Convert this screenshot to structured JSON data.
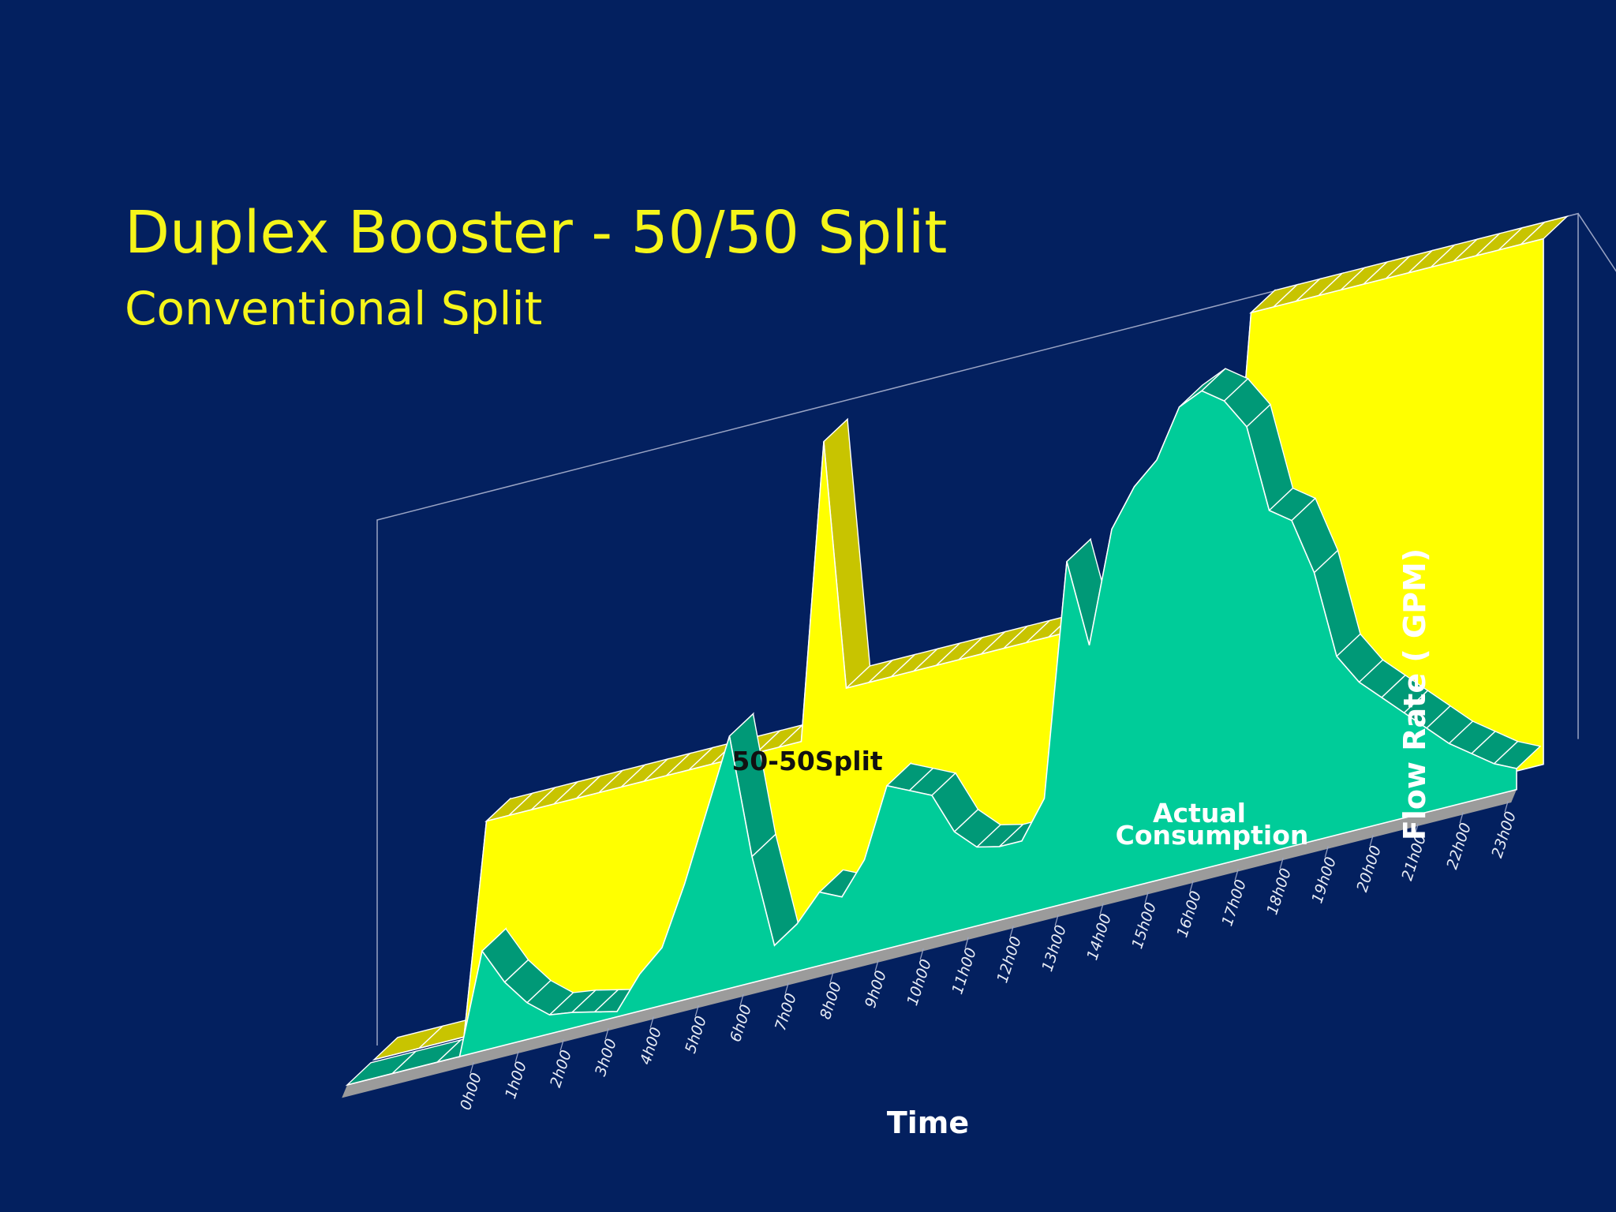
{
  "title": "Duplex Booster - 50/50 Split",
  "subtitle": "Conventional Split",
  "chart_data": {
    "type": "area",
    "projection": "3d",
    "categories": [
      "0h00",
      "1h00",
      "2h00",
      "3h00",
      "4h00",
      "5h00",
      "6h00",
      "7h00",
      "8h00",
      "9h00",
      "10h00",
      "11h00",
      "12h00",
      "13h00",
      "14h00",
      "15h00",
      "16h00",
      "17h00",
      "18h00",
      "19h00",
      "20h00",
      "21h00",
      "22h00",
      "23h00"
    ],
    "x": [
      -3,
      -2,
      -1,
      -0.5,
      0,
      0.5,
      1,
      1.5,
      2,
      2.5,
      3,
      3.5,
      4,
      4.5,
      5,
      5.5,
      6,
      6.5,
      7,
      7.5,
      8,
      8.5,
      9,
      9.5,
      10,
      10.5,
      11,
      11.5,
      12,
      12.5,
      13,
      13.5,
      14,
      14.5,
      15,
      15.5,
      16,
      16.5,
      17,
      17.5,
      18,
      18.5,
      19,
      19.5,
      20,
      20.5,
      21,
      21.5,
      22,
      22.5,
      23
    ],
    "series": [
      {
        "name": "50-50Split",
        "color": "#ffff00",
        "side_color": "#c8c400",
        "values": [
          0,
          0,
          0,
          200,
          200,
          200,
          200,
          200,
          200,
          200,
          200,
          200,
          200,
          200,
          200,
          200,
          200,
          200,
          480,
          240,
          240,
          240,
          240,
          240,
          240,
          240,
          240,
          240,
          240,
          240,
          240,
          240,
          240,
          240,
          240,
          240,
          240,
          500,
          500,
          500,
          500,
          500,
          500,
          500,
          500,
          500,
          500,
          500,
          500,
          500,
          500
        ]
      },
      {
        "name": "Actual Consumption",
        "color": "#00cc99",
        "side_color": "#009977",
        "values": [
          0,
          0,
          0,
          0,
          95,
          60,
          35,
          18,
          15,
          10,
          5,
          35,
          55,
          110,
          175,
          240,
          120,
          30,
          45,
          70,
          60,
          90,
          155,
          145,
          135,
          95,
          75,
          70,
          70,
          105,
          325,
          240,
          345,
          380,
          400,
          445,
          455,
          440,
          410,
          325,
          310,
          255,
          170,
          140,
          120,
          100,
          80,
          60,
          45,
          30,
          20
        ]
      }
    ],
    "xlabel": "Time",
    "ylabel": "Flow Rate ( GPM)",
    "ylim": [
      0,
      500
    ],
    "yticks": [
      0,
      50,
      100,
      150,
      200,
      250,
      300,
      350,
      400,
      450,
      500
    ],
    "grid": false,
    "legend": "none"
  }
}
